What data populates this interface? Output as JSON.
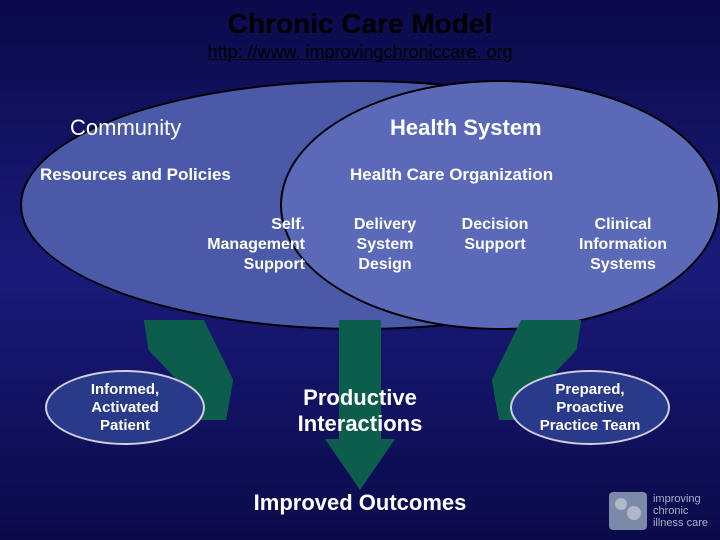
{
  "title": "Chronic Care Model",
  "subtitle": "http: //www. improvingchroniccare. org",
  "background_gradient": [
    "#0a0a4a",
    "#1a1a7a",
    "#0a0a4a"
  ],
  "outer_ellipse": {
    "label_left": "Community",
    "sublabel_left": "Resources and Policies",
    "fill": "#4a5aa8",
    "border": "#000000"
  },
  "inner_ellipse": {
    "label": "Health System",
    "sublabel": "Health Care Organization",
    "fill": "#5a6ab8",
    "border": "#000000"
  },
  "pillars": [
    "Self.\nManagement\nSupport",
    "Delivery\nSystem\nDesign",
    "Decision\nSupport",
    "Clinical\nInformation\nSystems"
  ],
  "arrows": {
    "color": "#0d5d4d"
  },
  "left_oval": "Informed,\nActivated\nPatient",
  "right_oval": "Prepared,\nProactive\nPractice Team",
  "small_oval_style": {
    "fill": "#2a3a8a",
    "border": "#cfcfe0"
  },
  "center_text": "Productive\nInteractions",
  "bottom_text": "Improved Outcomes",
  "logo": {
    "line1": "improving",
    "line2": "chronic",
    "line3": "illness care",
    "icon_bg": "#7a8aa8"
  },
  "text_color": "#ffffff",
  "title_color": "#000000",
  "fonts": {
    "title_size_pt": 28,
    "subtitle_size_pt": 18,
    "heading_size_pt": 22,
    "subheading_size_pt": 17,
    "pillar_size_pt": 16,
    "oval_size_pt": 15
  }
}
